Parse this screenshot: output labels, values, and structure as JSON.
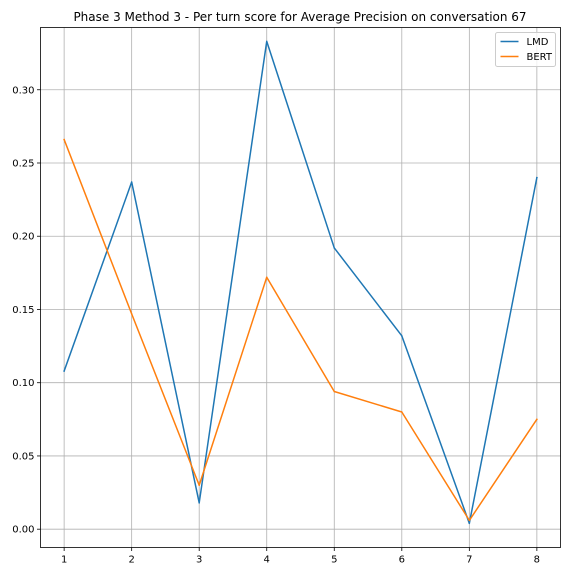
{
  "chart_data": {
    "type": "line",
    "title": "Phase 3 Method 3 - Per turn score for Average Precision on conversation 67",
    "xlabel": "",
    "ylabel": "",
    "x": [
      1,
      2,
      3,
      4,
      5,
      6,
      7,
      8
    ],
    "x_ticks": [
      "1",
      "2",
      "3",
      "4",
      "5",
      "6",
      "7",
      "8"
    ],
    "y_ticks": [
      "0.00",
      "0.05",
      "0.10",
      "0.15",
      "0.20",
      "0.25",
      "0.30"
    ],
    "xlim": [
      0.65,
      8.35
    ],
    "ylim": [
      -0.0125,
      0.3425
    ],
    "grid": true,
    "legend_position": "top-right",
    "series": [
      {
        "name": "LMD",
        "color": "#1f77b4",
        "values": [
          0.108,
          0.237,
          0.018,
          0.333,
          0.192,
          0.132,
          0.004,
          0.24
        ]
      },
      {
        "name": "BERT",
        "color": "#ff7f0e",
        "values": [
          0.266,
          0.147,
          0.03,
          0.172,
          0.094,
          0.08,
          0.006,
          0.075
        ]
      }
    ]
  }
}
